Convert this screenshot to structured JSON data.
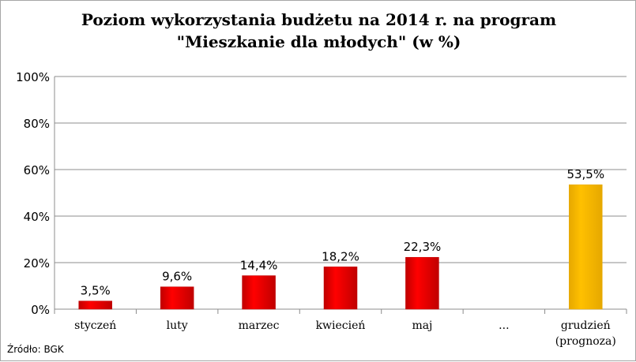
{
  "title_line1": "Poziom wykorzystania budżetu na 2014 r. na program",
  "title_line2": "\"Mieszkanie dla młodych\" (w %)",
  "source": "Źródło: BGK",
  "colors": {
    "bar_red": "#ff0000",
    "bar_red_dark": "#c00000",
    "bar_forecast": "#ffc000",
    "bar_forecast_dark": "#e6a800",
    "grid": "#8c8c8c"
  },
  "chart_data": {
    "type": "bar",
    "categories": [
      "styczeń",
      "luty",
      "marzec",
      "kwiecień",
      "maj",
      "...",
      [
        "grudzień",
        "(prognoza)"
      ]
    ],
    "values": [
      3.5,
      9.6,
      14.4,
      18.2,
      22.3,
      null,
      53.5
    ],
    "data_labels": [
      "3,5%",
      "9,6%",
      "14,4%",
      "18,2%",
      "22,3%",
      "",
      "53,5%"
    ],
    "highlight": [
      false,
      false,
      false,
      false,
      false,
      false,
      true
    ],
    "ylim": [
      0,
      100
    ],
    "yticks": [
      0,
      20,
      40,
      60,
      80,
      100
    ],
    "ytick_labels": [
      "0%",
      "20%",
      "40%",
      "60%",
      "80%",
      "100%"
    ],
    "grid": true,
    "legend": false
  }
}
